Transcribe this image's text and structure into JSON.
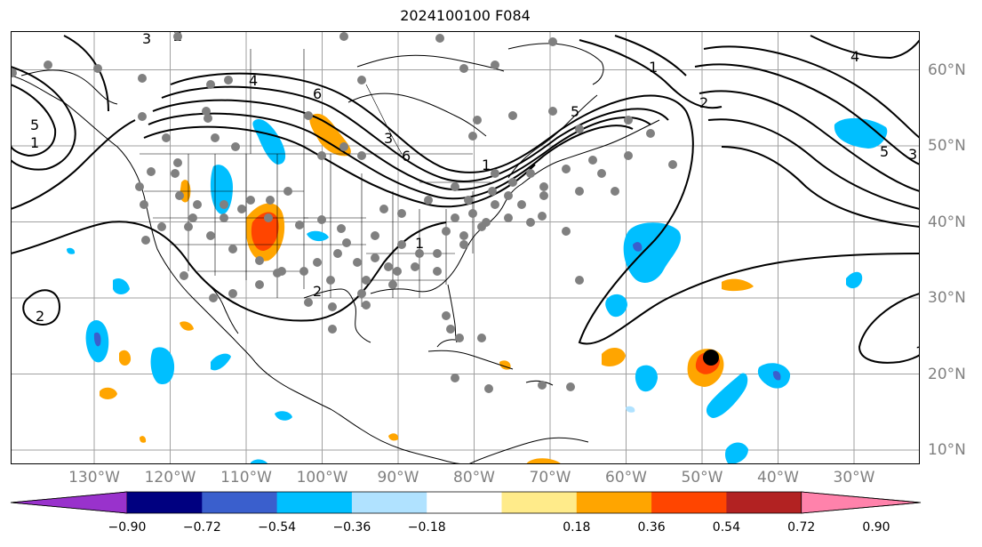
{
  "title": "2024100100 F084",
  "colors": {
    "coast": "#000000",
    "contour": "#000000",
    "grid": "#a0a0a0",
    "station": "#808080"
  },
  "lon_labels": [
    {
      "text": "130°W",
      "lon": -130
    },
    {
      "text": "120°W",
      "lon": -120
    },
    {
      "text": "110°W",
      "lon": -110
    },
    {
      "text": "100°W",
      "lon": -100
    },
    {
      "text": "90°W",
      "lon": -90
    },
    {
      "text": "80°W",
      "lon": -80
    },
    {
      "text": "70°W",
      "lon": -70
    },
    {
      "text": "60°W",
      "lon": -60
    },
    {
      "text": "50°W",
      "lon": -50
    },
    {
      "text": "40°W",
      "lon": -40
    },
    {
      "text": "30°W",
      "lon": -30
    }
  ],
  "lat_labels": [
    {
      "text": "60°N",
      "lat": 60
    },
    {
      "text": "50°N",
      "lat": 50
    },
    {
      "text": "40°N",
      "lat": 40
    },
    {
      "text": "30°N",
      "lat": 30
    },
    {
      "text": "20°N",
      "lat": 20
    },
    {
      "text": "10°N",
      "lat": 10
    }
  ],
  "colorbar": {
    "colors": [
      "#9932cc",
      "#000080",
      "#3a5fcd",
      "#00bfff",
      "#b0e2ff",
      "#ffffff",
      "#ffeb8a",
      "#ffa500",
      "#ff4500",
      "#b22222",
      "#ff82ab"
    ],
    "ticks": [
      "−0.90",
      "−0.72",
      "−0.54",
      "−0.36",
      "−0.18",
      "0.18",
      "0.36",
      "0.54",
      "0.72",
      "0.90"
    ]
  },
  "contour_labels": [
    "3",
    "2",
    "4",
    "6",
    "5",
    "1",
    "6",
    "4",
    "5",
    "3",
    "1",
    "2",
    "1",
    "2",
    "2",
    "1",
    "5",
    "3",
    "1"
  ]
}
